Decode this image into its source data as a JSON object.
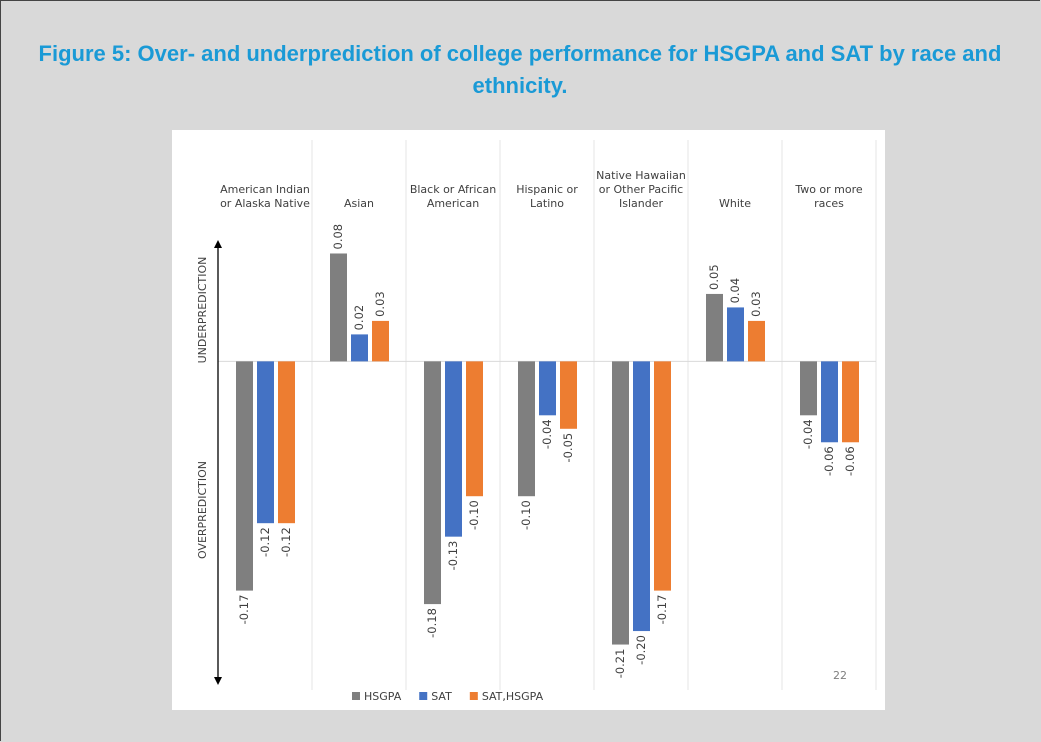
{
  "chart_data": {
    "type": "bar",
    "title": "Figure 5: Over- and underprediction of college performance for HSGPA and SAT by race and ethnicity.",
    "categories": [
      "American Indian or Alaska Native",
      "Asian",
      "Black or African American",
      "Hispanic or Latino",
      "Native Hawaiian or Other Pacific Islander",
      "White",
      "Two or more races"
    ],
    "series": [
      {
        "name": "HSGPA",
        "color": "#7f7f7f",
        "values": [
          -0.17,
          0.08,
          -0.18,
          -0.1,
          -0.21,
          0.05,
          -0.04
        ],
        "value_labels": [
          "-0.17",
          "0.08",
          "-0.18",
          "-0.10",
          "-0.21",
          "0.05",
          "-0.04"
        ]
      },
      {
        "name": "SAT",
        "color": "#4472c4",
        "values": [
          -0.12,
          0.02,
          -0.13,
          -0.04,
          -0.2,
          0.04,
          -0.06
        ],
        "value_labels": [
          "-0.12",
          "0.02",
          "-0.13",
          "-0.04",
          "-0.20",
          "0.04",
          "-0.06"
        ]
      },
      {
        "name": "SAT,HSGPA",
        "color": "#ed7d31",
        "values": [
          -0.12,
          0.03,
          -0.1,
          -0.05,
          -0.17,
          0.03,
          -0.06
        ],
        "value_labels": [
          "-0.12",
          "0.03",
          "-0.10",
          "-0.05",
          "-0.17",
          "0.03",
          "-0.06"
        ]
      }
    ],
    "ylim": [
      -0.24,
      0.09
    ],
    "y_annotations": [
      "UNDERPREDICTION",
      "OVERPREDICTION"
    ],
    "page_number": "22",
    "legend": "bottom"
  }
}
